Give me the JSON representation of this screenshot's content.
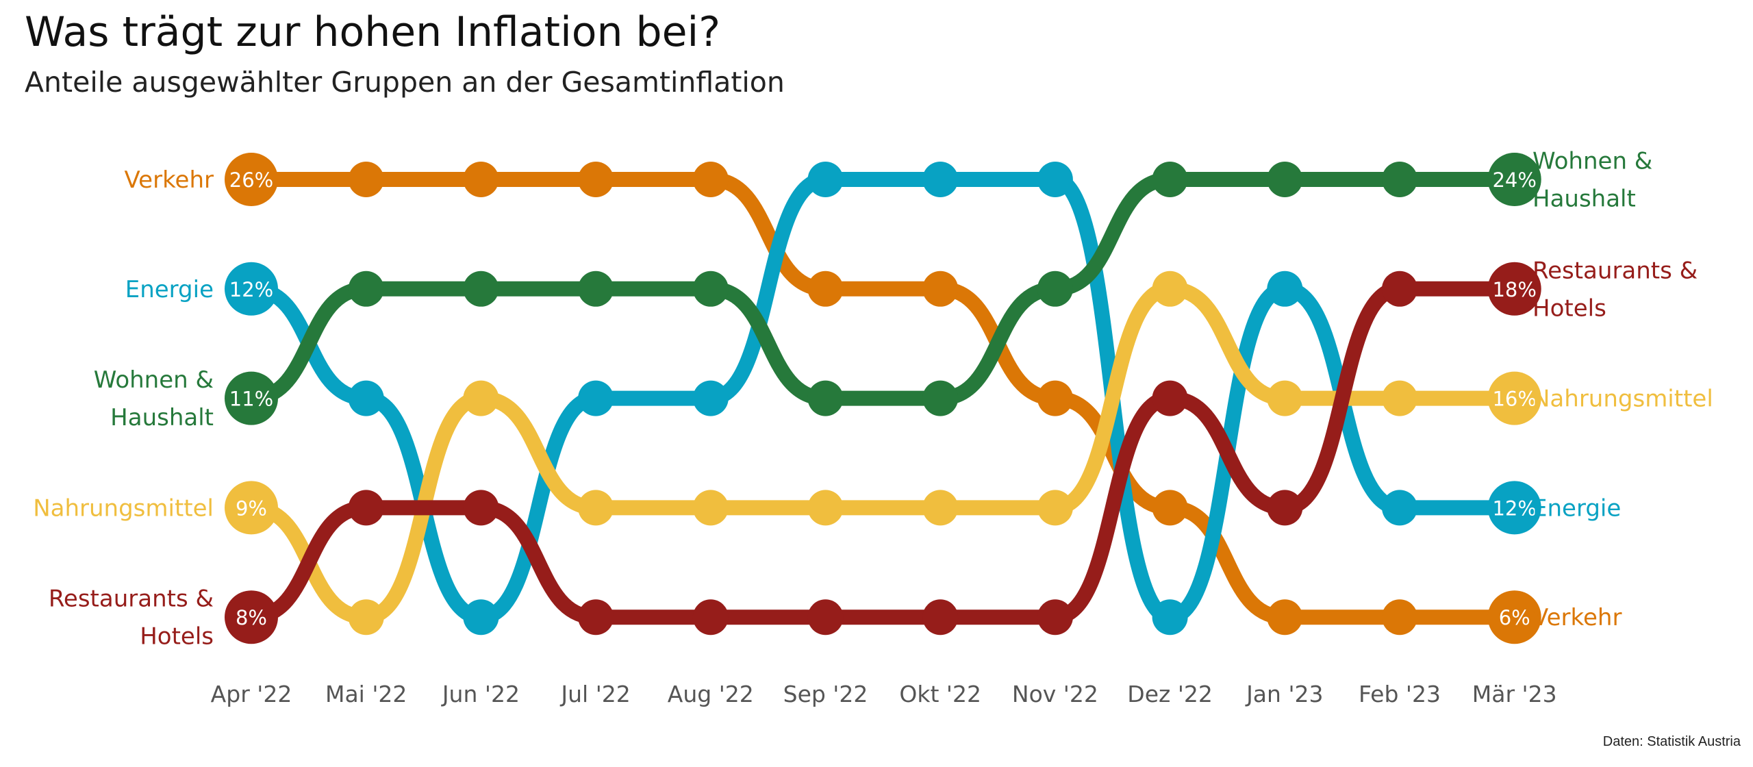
{
  "title": "Was trägt zur hohen Inflation bei?",
  "subtitle": "Anteile ausgewählter Gruppen an der Gesamtinflation",
  "source": "Daten: Statistik Austria",
  "chart_data": {
    "type": "line",
    "subtype": "bump chart (rank by share)",
    "x": [
      "Apr '22",
      "Mai '22",
      "Jun '22",
      "Jul '22",
      "Aug '22",
      "Sep '22",
      "Okt '22",
      "Nov '22",
      "Dez '22",
      "Jan '23",
      "Feb '23",
      "Mär '23"
    ],
    "series": [
      {
        "name": "Verkehr",
        "label_lines": [
          "Verkehr"
        ],
        "color": "#DB7706",
        "ranks": [
          1,
          1,
          1,
          1,
          1,
          2,
          2,
          3,
          4,
          5,
          5,
          5
        ],
        "start_value": "26%",
        "end_value": "6%"
      },
      {
        "name": "Energie",
        "label_lines": [
          "Energie"
        ],
        "color": "#08A2C3",
        "ranks": [
          2,
          3,
          5,
          3,
          3,
          1,
          1,
          1,
          5,
          2,
          4,
          4
        ],
        "start_value": "12%",
        "end_value": "12%"
      },
      {
        "name": "Wohnen & Haushalt",
        "label_lines": [
          "Wohnen &",
          "Haushalt"
        ],
        "color": "#26793B",
        "ranks": [
          3,
          2,
          2,
          2,
          2,
          3,
          3,
          2,
          1,
          1,
          1,
          1
        ],
        "start_value": "11%",
        "end_value": "24%"
      },
      {
        "name": "Nahrungsmittel",
        "label_lines": [
          "Nahrungsmittel"
        ],
        "color": "#F0BE3E",
        "ranks": [
          4,
          5,
          3,
          4,
          4,
          4,
          4,
          4,
          2,
          3,
          3,
          3
        ],
        "start_value": "9%",
        "end_value": "16%"
      },
      {
        "name": "Restaurants & Hotels",
        "label_lines": [
          "Restaurants &",
          "Hotels"
        ],
        "color": "#961D1A",
        "ranks": [
          5,
          4,
          4,
          5,
          5,
          5,
          5,
          5,
          3,
          4,
          2,
          2
        ],
        "start_value": "8%",
        "end_value": "18%"
      }
    ],
    "rank_range": [
      1,
      5
    ],
    "grid": false,
    "legend": "direct labels left and right"
  }
}
